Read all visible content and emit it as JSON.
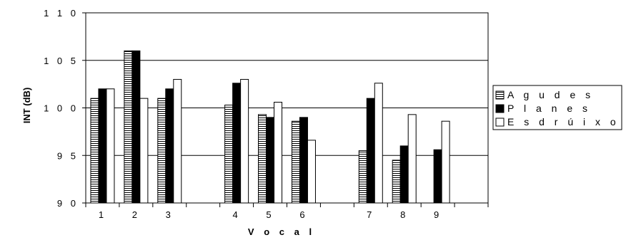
{
  "chart_data": {
    "type": "bar",
    "title": "",
    "xlabel": "V o c a l",
    "ylabel": "INT (dB)",
    "ylim": [
      90,
      110
    ],
    "yticks": [
      90,
      95,
      100,
      105,
      110
    ],
    "ytick_labels": [
      "9 0",
      "9 5",
      "1 0 0",
      "1 0 5",
      "1 1 0"
    ],
    "categories": [
      "1",
      "2",
      "3",
      "",
      "4",
      "5",
      "6",
      "",
      "7",
      "8",
      "9",
      ""
    ],
    "grid": true,
    "legend_position": "right",
    "series": [
      {
        "name": "A g u d e s",
        "pattern": "horizontal-stripes",
        "color": "#000000",
        "values": [
          101.0,
          106.0,
          101.0,
          null,
          100.3,
          99.3,
          98.6,
          null,
          95.5,
          94.5,
          null,
          null
        ]
      },
      {
        "name": "P l a n e s",
        "pattern": "solid",
        "color": "#000000",
        "values": [
          102.0,
          106.0,
          102.0,
          null,
          102.6,
          99.0,
          99.0,
          null,
          101.0,
          96.0,
          95.6,
          null
        ]
      },
      {
        "name": "E s d r ú i x o l e s",
        "pattern": "none",
        "color": "#ffffff",
        "values": [
          102.0,
          101.0,
          103.0,
          null,
          103.0,
          100.6,
          96.6,
          null,
          102.6,
          99.3,
          98.6,
          null
        ]
      }
    ]
  }
}
